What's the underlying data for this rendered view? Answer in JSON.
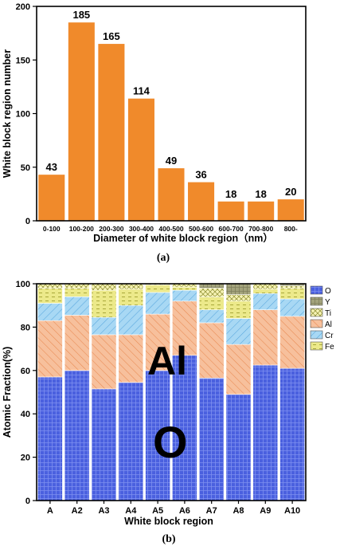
{
  "chart_data": [
    {
      "type": "bar",
      "categories": [
        "0-100",
        "100-200",
        "200-300",
        "300-400",
        "400-500",
        "500-600",
        "600-700",
        "700-800",
        "800-"
      ],
      "values": [
        43,
        185,
        165,
        114,
        49,
        36,
        18,
        18,
        20
      ],
      "xlabel": "Diameter of white block region（nm）",
      "ylabel": "White block region number",
      "ylim": [
        0,
        200
      ],
      "yticks": [
        0,
        50,
        100,
        150,
        200
      ],
      "bar_color": "#f08a2b",
      "caption": "(a)"
    },
    {
      "type": "bar",
      "stacked": true,
      "categories": [
        "A",
        "A2",
        "A3",
        "A4",
        "A5",
        "A6",
        "A7",
        "A8",
        "A9",
        "A10"
      ],
      "series": [
        {
          "name": "O",
          "color": "#4a60df",
          "pattern": "grid",
          "values": [
            57,
            60,
            51.5,
            54.5,
            60,
            67,
            56.5,
            49,
            62.5,
            61
          ]
        },
        {
          "name": "Al",
          "color": "#f6b78e",
          "pattern": "diagonal",
          "values": [
            26,
            25.5,
            25,
            22,
            26,
            25,
            25.5,
            23,
            25.5,
            24
          ]
        },
        {
          "name": "Cr",
          "color": "#9fd3f2",
          "pattern": "backdiagonal",
          "values": [
            8,
            8.5,
            8,
            13.5,
            10,
            5,
            6,
            12,
            7.5,
            8
          ]
        },
        {
          "name": "Fe",
          "color": "#e6e37a",
          "pattern": "dashes",
          "values": [
            7,
            4,
            12.5,
            7.5,
            3.5,
            1.5,
            6,
            8,
            2,
            5
          ]
        },
        {
          "name": "Ti",
          "color": "#f3f0a6",
          "pattern": "crosshatch",
          "values": [
            2,
            2,
            3,
            2.5,
            0.5,
            1.5,
            4,
            3,
            2.5,
            1
          ]
        },
        {
          "name": "Y",
          "color": "#a3a37c",
          "pattern": "grid",
          "values": [
            0,
            0,
            0,
            0,
            0,
            0,
            2,
            5,
            0,
            1
          ]
        }
      ],
      "legend_order": [
        "O",
        "Y",
        "Ti",
        "Al",
        "Cr",
        "Fe"
      ],
      "legend_position": "right",
      "xlabel": "White block region",
      "ylabel": "Atomic Fraction(%)",
      "ylim": [
        0,
        100
      ],
      "yticks": [
        0,
        20,
        40,
        60,
        80,
        100
      ],
      "annotations": [
        "Al",
        "O"
      ],
      "caption": "(b)"
    }
  ]
}
